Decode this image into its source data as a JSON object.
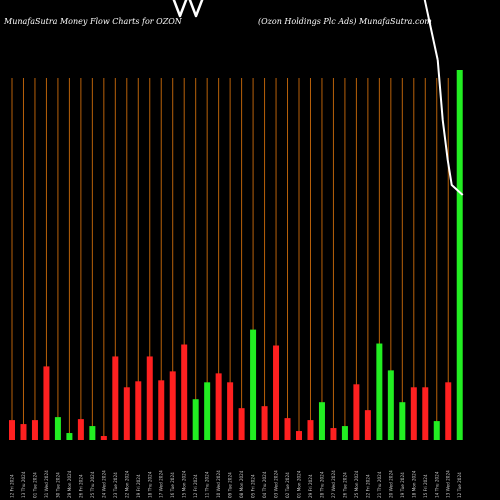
{
  "header": {
    "left": "MunafaSutra  Money Flow  Charts for OZON",
    "right": "(Ozon  Holdings Plc Ads) MunafaSutra.com"
  },
  "colors": {
    "background": "#000000",
    "grid": "#b8610a",
    "up": "#22ee22",
    "down": "#ff2020",
    "line": "#ffffff"
  },
  "chart_data": {
    "type": "bar",
    "grid": true,
    "categories": [
      "12 Fri 2024",
      "13 Thu 2024",
      "01 Tue 2024",
      "31 Wed 2024",
      "30 Tue 2024",
      "29 Mon 2024",
      "26 Fri 2024",
      "25 Thu 2024",
      "24 Wed 2024",
      "23 Tue 2024",
      "22 Mon 2024",
      "19 Fri 2024",
      "18 Thu 2024",
      "17 Wed 2024",
      "16 Tue 2024",
      "15 Mon 2024",
      "12 Fri 2024",
      "11 Thu 2024",
      "10 Wed 2024",
      "09 Tue 2024",
      "08 Mon 2024",
      "05 Fri 2024",
      "04 Thu 2024",
      "03 Wed 2024",
      "02 Tue 2024",
      "01 Mon 2024",
      "29 Fri 2024",
      "28 Thu 2024",
      "27 Wed 2024",
      "26 Tue 2024",
      "25 Mon 2024",
      "22 Fri 2024",
      "21 Thu 2024",
      "20 Wed 2024",
      "19 Tue 2024",
      "18 Mon 2024",
      "15 Fri 2024",
      "14 Thu 2024",
      "13 Wed 2024",
      "12 Tue 2024"
    ],
    "values": [
      20,
      16,
      20,
      74,
      23,
      7,
      21,
      14,
      4,
      84,
      53,
      59,
      84,
      60,
      69,
      96,
      41,
      58,
      67,
      58,
      32,
      111,
      34,
      95,
      22,
      9,
      20,
      38,
      12,
      14,
      56,
      30,
      97,
      70,
      38,
      53,
      53,
      19,
      58,
      372
    ],
    "ratio": [
      0.034,
      0.028,
      0.036,
      0.133,
      0.041,
      0.013,
      0.037,
      0.025,
      0.007,
      0.151,
      0.095,
      0.106,
      0.151,
      0.108,
      0.124,
      0.172,
      0.073,
      0.104,
      0.12,
      0.104,
      0.057,
      0.199,
      0.061,
      0.171,
      0.039,
      0.016,
      0.036,
      0.068,
      0.022,
      0.025,
      0.101,
      0.054,
      0.174,
      0.126,
      0.068,
      0.095,
      0.095,
      0.034,
      0.104,
      0.668
    ],
    "last_bar": 145,
    "direction": [
      "down",
      "down",
      "down",
      "down",
      "up",
      "up",
      "down",
      "up",
      "down",
      "down",
      "down",
      "down",
      "down",
      "down",
      "down",
      "down",
      "up",
      "up",
      "down",
      "down",
      "down",
      "up",
      "down",
      "down",
      "down",
      "down",
      "down",
      "up",
      "down",
      "up",
      "down",
      "down",
      "up",
      "up",
      "up",
      "down",
      "down",
      "up",
      "down",
      "up"
    ],
    "line": [
      180,
      140,
      90,
      45,
      10,
      -25,
      -60,
      -90
    ],
    "ylim": [
      0,
      560
    ]
  }
}
